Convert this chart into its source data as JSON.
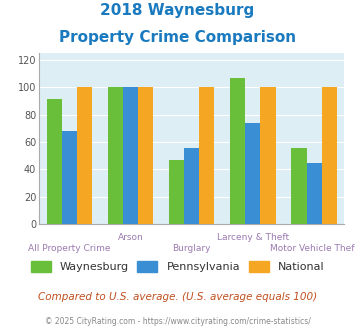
{
  "title_line1": "2018 Waynesburg",
  "title_line2": "Property Crime Comparison",
  "title_color": "#1a7abf",
  "categories": [
    "All Property Crime",
    "Arson",
    "Burglary",
    "Larceny & Theft",
    "Motor Vehicle Theft"
  ],
  "waynesburg": [
    91,
    100,
    47,
    107,
    56
  ],
  "pennsylvania": [
    68,
    100,
    56,
    74,
    45
  ],
  "national": [
    100,
    100,
    100,
    100,
    100
  ],
  "colors": {
    "waynesburg": "#6abf3a",
    "pennsylvania": "#3a8fd4",
    "national": "#f5a623"
  },
  "ylim": [
    0,
    125
  ],
  "yticks": [
    0,
    20,
    40,
    60,
    80,
    100,
    120
  ],
  "background_color": "#ddeef5",
  "grid_color": "#ffffff",
  "legend_labels": [
    "Waynesburg",
    "Pennsylvania",
    "National"
  ],
  "footnote1": "Compared to U.S. average. (U.S. average equals 100)",
  "footnote2": "© 2025 CityRating.com - https://www.cityrating.com/crime-statistics/",
  "footnote1_color": "#c05020",
  "footnote2_color": "#888888",
  "xlabel_color": "#9a7ab0",
  "tick_color": "#555555"
}
